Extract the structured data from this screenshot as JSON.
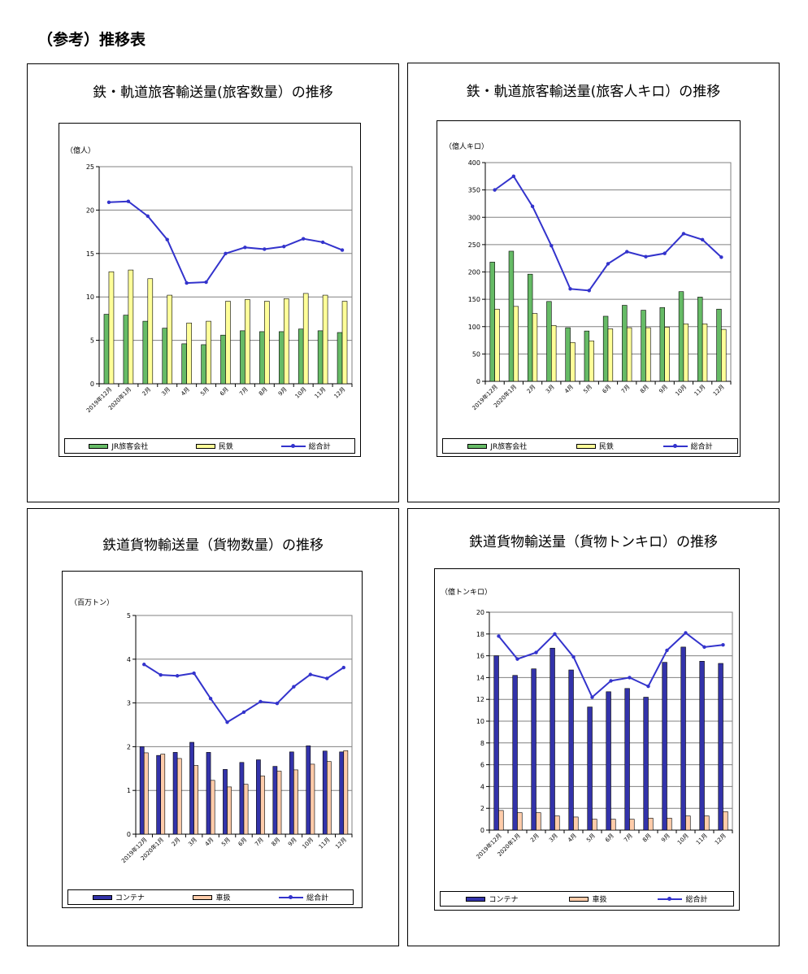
{
  "page_title": "（参考）推移表",
  "colors": {
    "total_line": "#3333cc",
    "jr_bar": "#66bb66",
    "private_bar": "#ffff99",
    "container_bar": "#3333aa",
    "carload_bar": "#ffccaa",
    "gridline": "#808080"
  },
  "chart_data": [
    {
      "type": "bar",
      "title": "鉄・軌道旅客輸送量(旅客数量）の推移",
      "ylabel": "（億人）",
      "xlabel": "",
      "ylim": [
        0,
        25
      ],
      "yticks": [
        0,
        5,
        10,
        15,
        20,
        25
      ],
      "grid": true,
      "legend_position": "bottom",
      "categories": [
        "2019年12月",
        "2020年1月",
        "2月",
        "3月",
        "4月",
        "5月",
        "6月",
        "7月",
        "8月",
        "9月",
        "10月",
        "11月",
        "12月"
      ],
      "series": [
        {
          "name": "JR旅客会社",
          "kind": "bar",
          "values": [
            8.0,
            7.9,
            7.2,
            6.4,
            4.6,
            4.5,
            5.6,
            6.1,
            6.0,
            6.0,
            6.3,
            6.1,
            5.9
          ]
        },
        {
          "name": "民鉄",
          "kind": "bar",
          "values": [
            12.9,
            13.1,
            12.1,
            10.2,
            7.0,
            7.2,
            9.5,
            9.7,
            9.5,
            9.8,
            10.4,
            10.2,
            9.5
          ]
        },
        {
          "name": "総合計",
          "kind": "line",
          "values": [
            20.9,
            21.0,
            19.3,
            16.6,
            11.6,
            11.7,
            15.0,
            15.7,
            15.5,
            15.8,
            16.7,
            16.3,
            15.4
          ]
        }
      ]
    },
    {
      "type": "bar",
      "title": "鉄・軌道旅客輸送量(旅客人キロ）の推移",
      "ylabel": "（億人キロ）",
      "xlabel": "",
      "ylim": [
        0,
        400
      ],
      "yticks": [
        0,
        50,
        100,
        150,
        200,
        250,
        300,
        350,
        400
      ],
      "grid": true,
      "legend_position": "bottom",
      "categories": [
        "2019年12月",
        "2020年1月",
        "2月",
        "3月",
        "4月",
        "5月",
        "6月",
        "7月",
        "8月",
        "9月",
        "10月",
        "11月",
        "12月"
      ],
      "series": [
        {
          "name": "JR旅客会社",
          "kind": "bar",
          "values": [
            218,
            238,
            196,
            146,
            98,
            92,
            119,
            139,
            130,
            135,
            164,
            154,
            132
          ]
        },
        {
          "name": "民鉄",
          "kind": "bar",
          "values": [
            132,
            137,
            124,
            102,
            71,
            74,
            96,
            98,
            98,
            99,
            105,
            105,
            95
          ]
        },
        {
          "name": "総合計",
          "kind": "line",
          "values": [
            350,
            375,
            320,
            248,
            169,
            166,
            215,
            237,
            228,
            234,
            270,
            259,
            227
          ]
        }
      ]
    },
    {
      "type": "bar",
      "title": "鉄道貨物輸送量（貨物数量）の推移",
      "ylabel": "（百万トン）",
      "xlabel": "",
      "ylim": [
        0,
        5
      ],
      "yticks": [
        0,
        1,
        2,
        3,
        4,
        5
      ],
      "grid": true,
      "legend_position": "bottom",
      "categories": [
        "2019年12月",
        "2020年1月",
        "2月",
        "3月",
        "4月",
        "5月",
        "6月",
        "7月",
        "8月",
        "9月",
        "10月",
        "11月",
        "12月"
      ],
      "series": [
        {
          "name": "コンテナ",
          "kind": "bar",
          "values": [
            2.0,
            1.8,
            1.87,
            2.1,
            1.87,
            1.48,
            1.64,
            1.7,
            1.55,
            1.88,
            2.02,
            1.9,
            1.88
          ]
        },
        {
          "name": "車扱",
          "kind": "bar",
          "values": [
            1.86,
            1.83,
            1.73,
            1.57,
            1.23,
            1.08,
            1.14,
            1.33,
            1.44,
            1.47,
            1.6,
            1.66,
            1.91
          ]
        },
        {
          "name": "総合計",
          "kind": "line",
          "values": [
            3.88,
            3.64,
            3.62,
            3.68,
            3.1,
            2.56,
            2.79,
            3.03,
            2.99,
            3.37,
            3.65,
            3.56,
            3.81
          ]
        }
      ]
    },
    {
      "type": "bar",
      "title": "鉄道貨物輸送量（貨物トンキロ）の推移",
      "ylabel": "（億トンキロ）",
      "xlabel": "",
      "ylim": [
        0,
        20
      ],
      "yticks": [
        0,
        2,
        4,
        6,
        8,
        10,
        12,
        14,
        16,
        18,
        20
      ],
      "grid": true,
      "legend_position": "bottom",
      "categories": [
        "2019年12月",
        "2020年1月",
        "2月",
        "3月",
        "4月",
        "5月",
        "6月",
        "7月",
        "8月",
        "9月",
        "10月",
        "11月",
        "12月"
      ],
      "series": [
        {
          "name": "コンテナ",
          "kind": "bar",
          "values": [
            16.0,
            14.2,
            14.8,
            16.7,
            14.7,
            11.3,
            12.7,
            13.0,
            12.2,
            15.4,
            16.8,
            15.5,
            15.3
          ]
        },
        {
          "name": "車扱",
          "kind": "bar",
          "values": [
            1.8,
            1.6,
            1.6,
            1.3,
            1.2,
            1.0,
            1.0,
            1.0,
            1.1,
            1.1,
            1.3,
            1.3,
            1.7
          ]
        },
        {
          "name": "総合計",
          "kind": "line",
          "values": [
            17.8,
            15.7,
            16.3,
            18.0,
            15.9,
            12.2,
            13.7,
            14.0,
            13.2,
            16.5,
            18.1,
            16.8,
            17.0
          ]
        }
      ]
    }
  ]
}
